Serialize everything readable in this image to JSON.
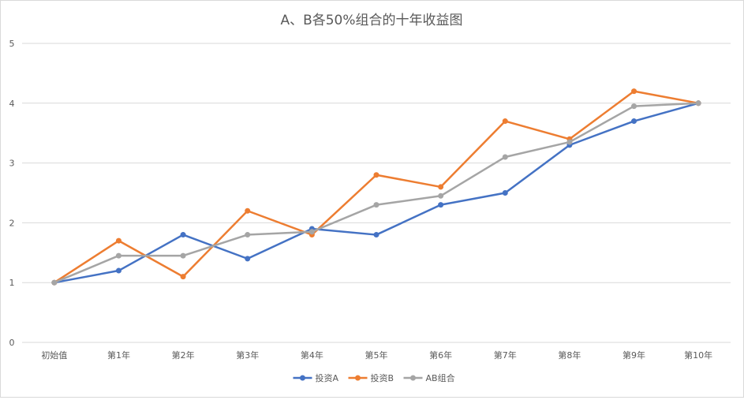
{
  "chart_data": {
    "type": "line",
    "title": "A、B各50%组合的十年收益图",
    "categories": [
      "初始值",
      "第1年",
      "第2年",
      "第3年",
      "第4年",
      "第5年",
      "第6年",
      "第7年",
      "第8年",
      "第9年",
      "第10年"
    ],
    "ylim": [
      0,
      5
    ],
    "yticks": [
      0,
      1,
      2,
      3,
      4,
      5
    ],
    "grid": true,
    "legend_position": "bottom",
    "series": [
      {
        "name": "投资A",
        "color": "#4472c4",
        "values": [
          1,
          1.2,
          1.8,
          1.4,
          1.9,
          1.8,
          2.3,
          2.5,
          3.3,
          3.7,
          4.0
        ]
      },
      {
        "name": "投资B",
        "color": "#ed7d31",
        "values": [
          1,
          1.7,
          1.1,
          2.2,
          1.8,
          2.8,
          2.6,
          3.7,
          3.4,
          4.2,
          4.0
        ]
      },
      {
        "name": "AB组合",
        "color": "#a5a5a5",
        "values": [
          1,
          1.45,
          1.45,
          1.8,
          1.85,
          2.3,
          2.45,
          3.1,
          3.35,
          3.95,
          4.0
        ]
      }
    ]
  }
}
